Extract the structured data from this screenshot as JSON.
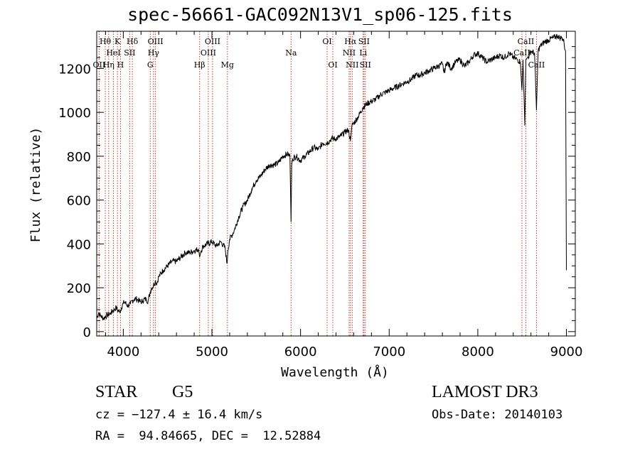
{
  "chart_data": {
    "type": "line",
    "title": "spec-56661-GAC092N13V1_sp06-125.fits",
    "xlabel": "Wavelength (Å)",
    "ylabel": "Flux (relative)",
    "xlim": [
      3700,
      9100
    ],
    "ylim": [
      -20,
      1370
    ],
    "xticks": [
      4000,
      5000,
      6000,
      7000,
      8000,
      9000
    ],
    "yticks": [
      0,
      200,
      400,
      600,
      800,
      1000,
      1200
    ],
    "series": [
      {
        "name": "flux",
        "x": [
          3700,
          3720,
          3740,
          3760,
          3780,
          3800,
          3820,
          3840,
          3860,
          3880,
          3900,
          3920,
          3940,
          3960,
          3980,
          4000,
          4020,
          4040,
          4060,
          4080,
          4100,
          4120,
          4140,
          4160,
          4180,
          4200,
          4220,
          4240,
          4260,
          4280,
          4300,
          4320,
          4340,
          4360,
          4380,
          4400,
          4450,
          4500,
          4550,
          4600,
          4650,
          4700,
          4750,
          4800,
          4850,
          4861,
          4880,
          4900,
          4950,
          5000,
          5050,
          5100,
          5150,
          5170,
          5175,
          5180,
          5200,
          5250,
          5300,
          5350,
          5400,
          5450,
          5500,
          5550,
          5600,
          5650,
          5700,
          5750,
          5800,
          5850,
          5880,
          5893,
          5900,
          5910,
          5950,
          6000,
          6050,
          6100,
          6150,
          6200,
          6250,
          6300,
          6350,
          6400,
          6450,
          6500,
          6540,
          6563,
          6580,
          6600,
          6650,
          6700,
          6750,
          6800,
          6850,
          6900,
          6950,
          7000,
          7050,
          7100,
          7150,
          7200,
          7250,
          7300,
          7350,
          7400,
          7450,
          7500,
          7550,
          7600,
          7620,
          7650,
          7700,
          7750,
          7800,
          7850,
          7900,
          7950,
          8000,
          8050,
          8100,
          8150,
          8200,
          8250,
          8300,
          8350,
          8400,
          8450,
          8480,
          8498,
          8510,
          8530,
          8542,
          8560,
          8580,
          8600,
          8640,
          8662,
          8680,
          8700,
          8750,
          8800,
          8850,
          8900,
          8920,
          8950,
          8970,
          8980,
          8990,
          9000
        ],
        "y": [
          60,
          85,
          75,
          65,
          60,
          70,
          75,
          80,
          85,
          95,
          100,
          110,
          95,
          90,
          110,
          130,
          135,
          120,
          120,
          125,
          140,
          145,
          150,
          145,
          140,
          135,
          140,
          150,
          145,
          140,
          175,
          200,
          210,
          230,
          220,
          250,
          280,
          300,
          320,
          320,
          340,
          360,
          360,
          370,
          375,
          340,
          370,
          390,
          400,
          410,
          390,
          410,
          380,
          310,
          330,
          370,
          420,
          460,
          520,
          570,
          600,
          650,
          690,
          710,
          740,
          760,
          760,
          770,
          800,
          810,
          800,
          500,
          760,
          790,
          800,
          780,
          800,
          820,
          840,
          830,
          860,
          860,
          880,
          880,
          890,
          910,
          920,
          870,
          940,
          950,
          980,
          1020,
          1040,
          1050,
          1060,
          1080,
          1090,
          1100,
          1110,
          1120,
          1130,
          1140,
          1150,
          1170,
          1170,
          1180,
          1190,
          1200,
          1210,
          1220,
          1180,
          1230,
          1200,
          1230,
          1240,
          1210,
          1230,
          1260,
          1270,
          1250,
          1230,
          1240,
          1250,
          1260,
          1250,
          1270,
          1250,
          1240,
          1230,
          1100,
          1240,
          940,
          1240,
          1250,
          1260,
          1280,
          1270,
          1010,
          1280,
          1300,
          1320,
          1330,
          1340,
          1350,
          1340,
          1340,
          1330,
          1290,
          1280,
          280
        ]
      }
    ],
    "line_markers": [
      {
        "wl": 3727,
        "label": "OII",
        "row": 3
      },
      {
        "wl": 3797,
        "label": "Hθ",
        "row": 1
      },
      {
        "wl": 3835,
        "label": "Hη",
        "row": 3
      },
      {
        "wl": 3889,
        "label": "HeI",
        "row": 2
      },
      {
        "wl": 3934,
        "label": "K",
        "row": 1
      },
      {
        "wl": 3968,
        "label": "H",
        "row": 3
      },
      {
        "wl": 4072,
        "label": "SII",
        "row": 2
      },
      {
        "wl": 4102,
        "label": "Hδ",
        "row": 1
      },
      {
        "wl": 4304,
        "label": "G",
        "row": 3
      },
      {
        "wl": 4341,
        "label": "Hγ",
        "row": 2
      },
      {
        "wl": 4363,
        "label": "OIII",
        "row": 1
      },
      {
        "wl": 4861,
        "label": "Hβ",
        "row": 3
      },
      {
        "wl": 4959,
        "label": "OIII",
        "row": 2
      },
      {
        "wl": 5007,
        "label": "OIII",
        "row": 1
      },
      {
        "wl": 5175,
        "label": "Mg",
        "row": 3
      },
      {
        "wl": 5893,
        "label": "Na",
        "row": 2
      },
      {
        "wl": 6300,
        "label": "OI",
        "row": 1
      },
      {
        "wl": 6364,
        "label": "OI",
        "row": 3
      },
      {
        "wl": 6548,
        "label": "NII",
        "row": 2
      },
      {
        "wl": 6563,
        "label": "Hα",
        "row": 1
      },
      {
        "wl": 6583,
        "label": "NII",
        "row": 3
      },
      {
        "wl": 6707,
        "label": "Li",
        "row": 2
      },
      {
        "wl": 6716,
        "label": "SII",
        "row": 1
      },
      {
        "wl": 6731,
        "label": "SII",
        "row": 3
      },
      {
        "wl": 8498,
        "label": "CaII",
        "row": 2
      },
      {
        "wl": 8542,
        "label": "CaII",
        "row": 1
      },
      {
        "wl": 8662,
        "label": "CaII",
        "row": 3
      }
    ]
  },
  "info": {
    "class": "STAR",
    "subclass": "G5",
    "survey": "LAMOST DR3",
    "cz": "cz = −127.4 ± 16.4 km/s",
    "obs_date": "Obs-Date: 20140103",
    "radec": "RA =  94.84665, DEC =  12.52884"
  },
  "colors": {
    "marker": "#c0392b",
    "line": "#000000"
  }
}
